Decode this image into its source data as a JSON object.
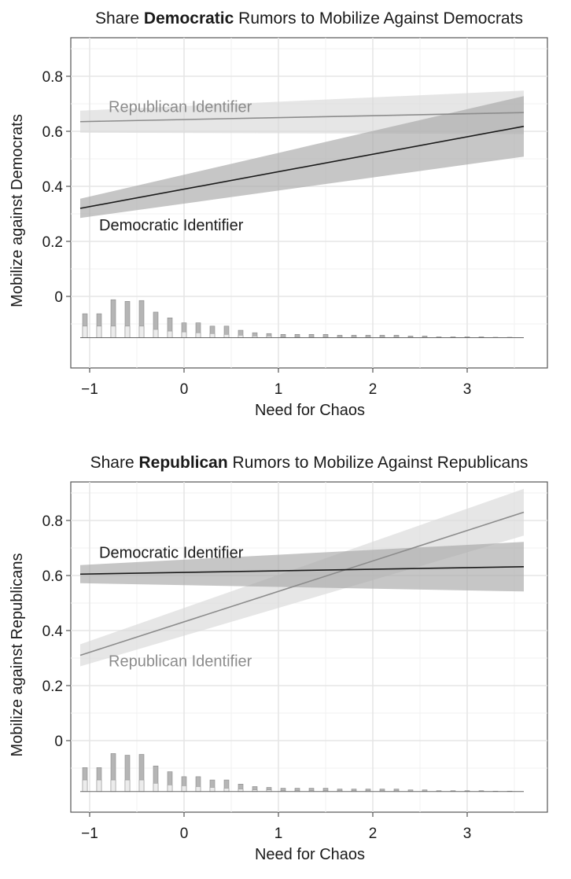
{
  "chart_data": [
    {
      "type": "line",
      "title_prefix": "Share ",
      "title_bold": "Democratic",
      "title_suffix": " Rumors to Mobilize Against Democrats",
      "xlabel": "Need for Chaos",
      "ylabel": "Mobilize against Democrats",
      "xlim": [
        -1.2,
        3.85
      ],
      "ylim": [
        -0.26,
        0.94
      ],
      "xticks": [
        "−1",
        "0",
        "1",
        "2",
        "3"
      ],
      "xtick_values": [
        -1,
        0,
        1,
        2,
        3
      ],
      "yticks": [
        "0",
        "0.2",
        "0.4",
        "0.6",
        "0.8"
      ],
      "ytick_values": [
        0,
        0.2,
        0.4,
        0.6,
        0.8
      ],
      "grid": true,
      "series": [
        {
          "name": "Republican Identifier",
          "color": "#8c8c8c",
          "band_color": "#d9d9d9",
          "x": [
            -1.1,
            3.6
          ],
          "y": [
            0.635,
            0.668
          ],
          "lower": [
            0.595,
            0.59
          ],
          "upper": [
            0.675,
            0.748
          ],
          "label_x": -0.8,
          "label_y": 0.69
        },
        {
          "name": "Democratic Identifier",
          "color": "#1a1a1a",
          "band_color": "#a8a8a8",
          "x": [
            -1.1,
            3.6
          ],
          "y": [
            0.32,
            0.618
          ],
          "lower": [
            0.285,
            0.508
          ],
          "upper": [
            0.355,
            0.728
          ],
          "label_x": -0.9,
          "label_y": 0.26
        }
      ],
      "histogram": {
        "baseline": -0.15,
        "scale": 0.15,
        "bins_x": [
          -1.05,
          -0.9,
          -0.75,
          -0.6,
          -0.45,
          -0.3,
          -0.15,
          0,
          0.15,
          0.3,
          0.45,
          0.6,
          0.75,
          0.9,
          1.05,
          1.2,
          1.35,
          1.5,
          1.65,
          1.8,
          1.95,
          2.1,
          2.25,
          2.4,
          2.55,
          2.7,
          2.85,
          3.0,
          3.15,
          3.3,
          3.45
        ],
        "group_a": [
          0.29,
          0.29,
          0.46,
          0.44,
          0.45,
          0.31,
          0.24,
          0.18,
          0.18,
          0.14,
          0.14,
          0.09,
          0.06,
          0.05,
          0.04,
          0.04,
          0.04,
          0.04,
          0.03,
          0.03,
          0.03,
          0.03,
          0.03,
          0.02,
          0.02,
          0.01,
          0.01,
          0.01,
          0.01,
          0.005,
          0.005
        ],
        "group_b": [
          0.14,
          0.14,
          0.14,
          0.14,
          0.14,
          0.1,
          0.08,
          0.07,
          0.06,
          0.05,
          0.04,
          0.03,
          0.02,
          0.02,
          0.01,
          0.01,
          0.01,
          0.01,
          0.01,
          0.01,
          0.01,
          0.01,
          0.01,
          0.0,
          0.0,
          0.0,
          0.0,
          0.0,
          0.0,
          0.0,
          0.0
        ]
      }
    },
    {
      "type": "line",
      "title_prefix": "Share ",
      "title_bold": "Republican",
      "title_suffix": " Rumors to Mobilize Against Republicans",
      "xlabel": "Need for Chaos",
      "ylabel": "Mobilize against Republicans",
      "xlim": [
        -1.2,
        3.85
      ],
      "ylim": [
        -0.26,
        0.94
      ],
      "xticks": [
        "−1",
        "0",
        "1",
        "2",
        "3"
      ],
      "xtick_values": [
        -1,
        0,
        1,
        2,
        3
      ],
      "yticks": [
        "0",
        "0.2",
        "0.4",
        "0.6",
        "0.8"
      ],
      "ytick_values": [
        0,
        0.2,
        0.4,
        0.6,
        0.8
      ],
      "grid": true,
      "series": [
        {
          "name": "Republican Identifier",
          "color": "#8c8c8c",
          "band_color": "#d9d9d9",
          "x": [
            -1.1,
            3.6
          ],
          "y": [
            0.31,
            0.83
          ],
          "lower": [
            0.27,
            0.745
          ],
          "upper": [
            0.35,
            0.915
          ],
          "label_x": -0.8,
          "label_y": 0.29
        },
        {
          "name": "Democratic Identifier",
          "color": "#1a1a1a",
          "band_color": "#a8a8a8",
          "x": [
            -1.1,
            3.6
          ],
          "y": [
            0.605,
            0.632
          ],
          "lower": [
            0.572,
            0.542
          ],
          "upper": [
            0.638,
            0.722
          ],
          "label_x": -0.9,
          "label_y": 0.685
        }
      ],
      "histogram": {
        "baseline": -0.185,
        "scale": 0.15,
        "bins_x": [
          -1.05,
          -0.9,
          -0.75,
          -0.6,
          -0.45,
          -0.3,
          -0.15,
          0,
          0.15,
          0.3,
          0.45,
          0.6,
          0.75,
          0.9,
          1.05,
          1.2,
          1.35,
          1.5,
          1.65,
          1.8,
          1.95,
          2.1,
          2.25,
          2.4,
          2.55,
          2.7,
          2.85,
          3.0,
          3.15,
          3.3,
          3.45
        ],
        "group_a": [
          0.29,
          0.29,
          0.46,
          0.44,
          0.45,
          0.31,
          0.24,
          0.18,
          0.18,
          0.14,
          0.14,
          0.09,
          0.06,
          0.05,
          0.04,
          0.04,
          0.04,
          0.04,
          0.03,
          0.03,
          0.03,
          0.03,
          0.03,
          0.02,
          0.02,
          0.01,
          0.01,
          0.01,
          0.01,
          0.005,
          0.005
        ],
        "group_b": [
          0.14,
          0.14,
          0.14,
          0.14,
          0.14,
          0.1,
          0.08,
          0.07,
          0.06,
          0.05,
          0.04,
          0.03,
          0.02,
          0.02,
          0.01,
          0.01,
          0.01,
          0.01,
          0.01,
          0.01,
          0.01,
          0.01,
          0.01,
          0.0,
          0.0,
          0.0,
          0.0,
          0.0,
          0.0,
          0.0,
          0.0
        ]
      }
    }
  ]
}
